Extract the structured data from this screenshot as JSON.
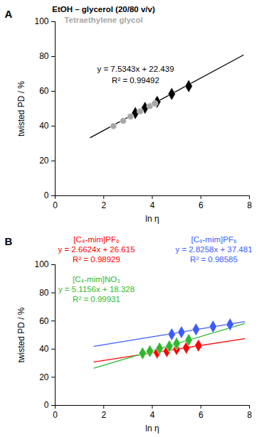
{
  "chart_data": [
    {
      "type": "scatter",
      "title": "A",
      "xlabel": "ln η",
      "ylabel": "twisted PD / %",
      "xlim": [
        0,
        8
      ],
      "ylim": [
        0,
        100
      ],
      "xticks": [
        0,
        2,
        4,
        6,
        8
      ],
      "yticks": [
        0,
        20,
        40,
        60,
        80,
        100
      ],
      "series": [
        {
          "name": "EtOH – glycerol (20/80 v/v)",
          "color": "#000000",
          "marker": "diamond",
          "x": [
            3.3,
            3.7,
            4.2,
            4.8,
            5.5
          ],
          "values": [
            47.5,
            50.5,
            54,
            58.5,
            63
          ]
        },
        {
          "name": "Tetraethylene glycol",
          "color": "#a6a6a6",
          "marker": "circle",
          "x": [
            2.4,
            2.8,
            3.1,
            3.5,
            3.9,
            4.1
          ],
          "values": [
            40,
            43,
            45.5,
            48.5,
            51.5,
            53
          ]
        }
      ],
      "fits": [
        {
          "color": "#000000",
          "x": [
            1.45,
            7.75
          ],
          "values": [
            33.4,
            80.8
          ],
          "equation": "y = 7.5343x + 22.439",
          "r_squared": "R² = 0.99492"
        }
      ]
    },
    {
      "type": "scatter",
      "title": "B",
      "xlabel": "ln η",
      "ylabel": "twisted PD / %",
      "xlim": [
        0,
        8
      ],
      "ylim": [
        0,
        100
      ],
      "xticks": [
        0,
        2,
        4,
        6,
        8
      ],
      "yticks": [
        0,
        20,
        40,
        60,
        80,
        100
      ],
      "series": [
        {
          "name": "[C₄-mim]PF₆",
          "color": "#ff0000",
          "marker": "diamond",
          "x": [
            4.2,
            4.6,
            5.0,
            5.4,
            5.9
          ],
          "values": [
            37.5,
            38.5,
            40,
            41,
            42.5
          ]
        },
        {
          "name": "[C₉-mim]PF₆",
          "color": "#3b5bff",
          "marker": "diamond",
          "x": [
            4.8,
            5.2,
            5.8,
            6.5,
            7.2
          ],
          "values": [
            50.5,
            52,
            54,
            56,
            57.5
          ]
        },
        {
          "name": "[C₄-mim]NO₃",
          "color": "#2db82d",
          "marker": "diamond",
          "x": [
            3.6,
            3.9,
            4.3,
            4.7,
            5.0,
            5.5
          ],
          "values": [
            37,
            38.5,
            40.5,
            42,
            44,
            46.5
          ]
        }
      ],
      "fits": [
        {
          "color": "#ff0000",
          "x": [
            1.6,
            7.8
          ],
          "values": [
            30.9,
            47.4
          ],
          "equation": "y = 2.6624x + 26.615",
          "r_squared": "R² = 0.98929"
        },
        {
          "color": "#3b5bff",
          "x": [
            1.6,
            7.8
          ],
          "values": [
            42.0,
            59.5
          ],
          "equation": "y = 2.8258x + 37.481",
          "r_squared": "R² = 0.98585"
        },
        {
          "color": "#2db82d",
          "x": [
            1.6,
            7.8
          ],
          "values": [
            26.5,
            58.2
          ],
          "equation": "y = 5.1156x + 18.328",
          "r_squared": "R² = 0.99931"
        }
      ]
    }
  ]
}
